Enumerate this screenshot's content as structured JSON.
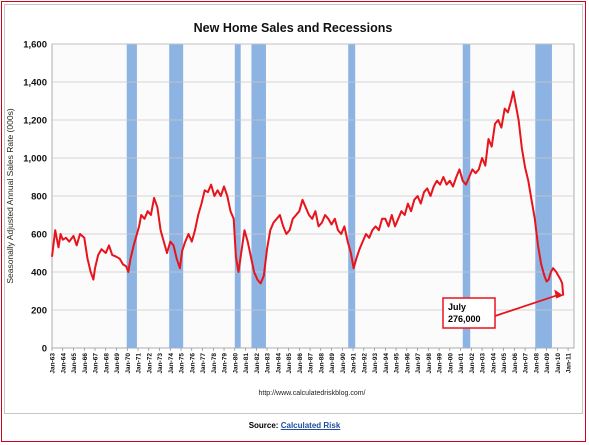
{
  "chart_data": {
    "type": "line",
    "title": "New Home Sales and Recessions",
    "ylabel": "Seasonally Adjusted Annual Sales Rate (000s)",
    "xlabel": "",
    "ylim": [
      0,
      1600
    ],
    "yticks": [
      "0",
      "200",
      "400",
      "600",
      "800",
      "1,000",
      "1,200",
      "1,400",
      "1,600"
    ],
    "grid": true,
    "xlim": [
      1963,
      2011.55
    ],
    "xtick_labels": [
      "Jan-63",
      "Jan-64",
      "Jan-65",
      "Jan-66",
      "Jan-67",
      "Jan-68",
      "Jan-69",
      "Jan-70",
      "Jan-71",
      "Jan-72",
      "Jan-73",
      "Jan-74",
      "Jan-75",
      "Jan-76",
      "Jan-77",
      "Jan-78",
      "Jan-79",
      "Jan-80",
      "Jan-81",
      "Jan-82",
      "Jan-83",
      "Jan-84",
      "Jan-85",
      "Jan-86",
      "Jan-87",
      "Jan-88",
      "Jan-89",
      "Jan-90",
      "Jan-91",
      "Jan-92",
      "Jan-93",
      "Jan-94",
      "Jan-95",
      "Jan-96",
      "Jan-97",
      "Jan-98",
      "Jan-99",
      "Jan-00",
      "Jan-01",
      "Jan-02",
      "Jan-03",
      "Jan-04",
      "Jan-05",
      "Jan-06",
      "Jan-07",
      "Jan-08",
      "Jan-09",
      "Jan-10",
      "Jan-11"
    ],
    "recessions": [
      {
        "start": 1969.95,
        "end": 1970.9
      },
      {
        "start": 1973.9,
        "end": 1975.2
      },
      {
        "start": 1980.0,
        "end": 1980.55
      },
      {
        "start": 1981.55,
        "end": 1982.9
      },
      {
        "start": 1990.55,
        "end": 1991.2
      },
      {
        "start": 2001.2,
        "end": 2001.9
      },
      {
        "start": 2007.95,
        "end": 2009.5
      }
    ],
    "recession_color": "#8db3e2",
    "series": [
      {
        "color": "#e8141c",
        "x": [
          1963.0,
          1963.3,
          1963.6,
          1963.8,
          1964.0,
          1964.3,
          1964.6,
          1965.0,
          1965.3,
          1965.6,
          1966.0,
          1966.3,
          1966.6,
          1966.85,
          1967.0,
          1967.3,
          1967.6,
          1968.0,
          1968.3,
          1968.6,
          1969.0,
          1969.3,
          1969.6,
          1969.9,
          1970.1,
          1970.3,
          1970.6,
          1970.9,
          1971.1,
          1971.3,
          1971.6,
          1971.9,
          1972.2,
          1972.5,
          1972.8,
          1973.1,
          1973.4,
          1973.7,
          1974.0,
          1974.3,
          1974.6,
          1974.9,
          1975.1,
          1975.4,
          1975.7,
          1976.0,
          1976.3,
          1976.6,
          1976.9,
          1977.2,
          1977.5,
          1977.8,
          1978.1,
          1978.4,
          1978.7,
          1979.0,
          1979.3,
          1979.6,
          1979.9,
          1980.1,
          1980.35,
          1980.6,
          1980.9,
          1981.2,
          1981.5,
          1981.8,
          1982.1,
          1982.4,
          1982.7,
          1983.0,
          1983.3,
          1983.6,
          1983.9,
          1984.2,
          1984.5,
          1984.8,
          1985.1,
          1985.4,
          1985.7,
          1986.0,
          1986.3,
          1986.6,
          1986.9,
          1987.2,
          1987.5,
          1987.8,
          1988.1,
          1988.4,
          1988.7,
          1989.0,
          1989.3,
          1989.6,
          1989.9,
          1990.2,
          1990.5,
          1990.8,
          1991.05,
          1991.3,
          1991.6,
          1991.9,
          1992.2,
          1992.5,
          1992.8,
          1993.1,
          1993.4,
          1993.7,
          1994.0,
          1994.3,
          1994.6,
          1994.9,
          1995.2,
          1995.5,
          1995.8,
          1996.1,
          1996.4,
          1996.7,
          1997.0,
          1997.3,
          1997.6,
          1997.9,
          1998.2,
          1998.5,
          1998.8,
          1999.1,
          1999.4,
          1999.7,
          2000.0,
          2000.3,
          2000.6,
          2000.9,
          2001.2,
          2001.5,
          2001.8,
          2002.1,
          2002.4,
          2002.7,
          2003.0,
          2003.3,
          2003.6,
          2003.9,
          2004.2,
          2004.5,
          2004.8,
          2005.1,
          2005.4,
          2005.7,
          2005.9,
          2006.1,
          2006.4,
          2006.7,
          2007.0,
          2007.3,
          2007.6,
          2007.9,
          2008.2,
          2008.5,
          2008.8,
          2009.0,
          2009.2,
          2009.4,
          2009.6,
          2009.9,
          2010.1,
          2010.3,
          2010.45,
          2010.55
        ],
        "y": [
          480,
          620,
          530,
          600,
          570,
          580,
          560,
          590,
          540,
          600,
          580,
          470,
          400,
          360,
          420,
          490,
          520,
          500,
          540,
          490,
          480,
          470,
          440,
          430,
          400,
          470,
          540,
          600,
          640,
          700,
          680,
          720,
          700,
          790,
          740,
          620,
          560,
          500,
          560,
          540,
          470,
          420,
          510,
          560,
          600,
          560,
          620,
          700,
          760,
          830,
          820,
          860,
          800,
          830,
          800,
          850,
          800,
          720,
          680,
          480,
          400,
          500,
          620,
          560,
          480,
          400,
          360,
          340,
          380,
          520,
          620,
          660,
          680,
          700,
          640,
          600,
          620,
          680,
          700,
          720,
          780,
          740,
          700,
          680,
          720,
          640,
          660,
          700,
          680,
          650,
          680,
          620,
          600,
          640,
          560,
          500,
          420,
          470,
          520,
          560,
          600,
          580,
          620,
          640,
          620,
          680,
          680,
          640,
          700,
          640,
          680,
          720,
          700,
          760,
          720,
          780,
          800,
          760,
          820,
          840,
          800,
          850,
          880,
          860,
          900,
          860,
          880,
          850,
          900,
          940,
          880,
          860,
          900,
          940,
          920,
          940,
          1000,
          960,
          1100,
          1060,
          1180,
          1200,
          1160,
          1260,
          1240,
          1300,
          1350,
          1290,
          1200,
          1050,
          950,
          880,
          780,
          680,
          540,
          440,
          380,
          350,
          360,
          400,
          420,
          400,
          380,
          360,
          340,
          276
        ]
      }
    ],
    "annotation": {
      "lines": [
        "July",
        "276,000"
      ],
      "x": 2010.55,
      "y": 276
    },
    "footer_url": "http://www.calculatedriskblog.com/"
  },
  "source": {
    "label": "Source:",
    "link_text": "Calculated Risk"
  },
  "colors": {
    "accent_border": "#d0021b",
    "link": "#1f4e9c",
    "grid": "#c8c8c8",
    "plot_bg": "#fbfbfb"
  }
}
